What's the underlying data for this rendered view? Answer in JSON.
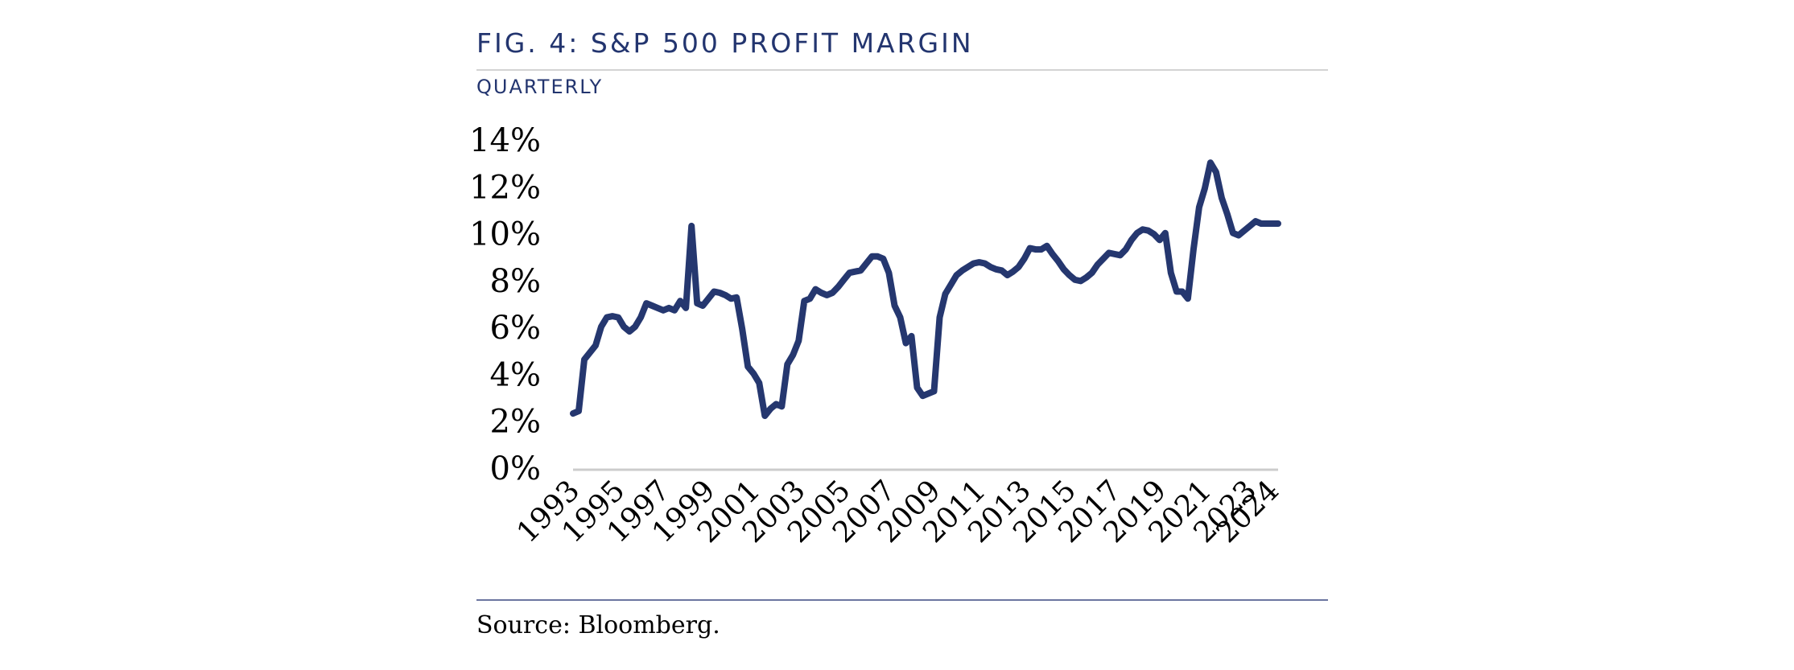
{
  "figure": {
    "title": "FIG. 4: S&P 500 PROFIT MARGIN",
    "subtitle": "QUARTERLY",
    "source": "Source: Bloomberg."
  },
  "colors": {
    "series": "#25376f",
    "heading": "#23356f",
    "baseline": "#cccccc"
  },
  "chart_data": {
    "type": "line",
    "title": "S&P 500 Profit Margin",
    "subtitle": "Quarterly",
    "xlabel": "",
    "ylabel": "",
    "ylim": [
      0,
      14
    ],
    "xlim": [
      1993,
      2024.25
    ],
    "grid": false,
    "legend": "none",
    "y_ticks": [
      0,
      2,
      4,
      6,
      8,
      10,
      12,
      14
    ],
    "y_tick_labels": [
      "0%",
      "2%",
      "4%",
      "6%",
      "8%",
      "10%",
      "12%",
      "14%"
    ],
    "x_ticks": [
      1993,
      1995,
      1997,
      1999,
      2001,
      2003,
      2005,
      2007,
      2009,
      2011,
      2013,
      2015,
      2017,
      2019,
      2021,
      2023,
      2024
    ],
    "x_tick_labels": [
      "1993",
      "1995",
      "1997",
      "1999",
      "2001",
      "2003",
      "2005",
      "2007",
      "2009",
      "2011",
      "2013",
      "2015",
      "2017",
      "2019",
      "2021",
      "2023",
      "2024"
    ],
    "series": [
      {
        "name": "S&P 500 Profit Margin",
        "x": [
          1993.0,
          1993.25,
          1993.5,
          1993.75,
          1994.0,
          1994.25,
          1994.5,
          1994.75,
          1995.0,
          1995.25,
          1995.5,
          1995.75,
          1996.0,
          1996.25,
          1996.5,
          1996.75,
          1997.0,
          1997.25,
          1997.5,
          1997.75,
          1998.0,
          1998.25,
          1998.5,
          1998.75,
          1999.0,
          1999.25,
          1999.5,
          1999.75,
          2000.0,
          2000.25,
          2000.5,
          2000.75,
          2001.0,
          2001.25,
          2001.5,
          2001.75,
          2002.0,
          2002.25,
          2002.5,
          2002.75,
          2003.0,
          2003.25,
          2003.5,
          2003.75,
          2004.0,
          2004.25,
          2004.5,
          2004.75,
          2005.0,
          2005.25,
          2005.5,
          2005.75,
          2006.0,
          2006.25,
          2006.5,
          2006.75,
          2007.0,
          2007.25,
          2007.5,
          2007.75,
          2008.0,
          2008.25,
          2008.5,
          2008.75,
          2009.0,
          2009.25,
          2009.5,
          2009.75,
          2010.0,
          2010.25,
          2010.5,
          2010.75,
          2011.0,
          2011.25,
          2011.5,
          2011.75,
          2012.0,
          2012.25,
          2012.5,
          2012.75,
          2013.0,
          2013.25,
          2013.5,
          2013.75,
          2014.0,
          2014.25,
          2014.5,
          2014.75,
          2015.0,
          2015.25,
          2015.5,
          2015.75,
          2016.0,
          2016.25,
          2016.5,
          2016.75,
          2017.0,
          2017.25,
          2017.5,
          2017.75,
          2018.0,
          2018.25,
          2018.5,
          2018.75,
          2019.0,
          2019.25,
          2019.5,
          2019.75,
          2020.0,
          2020.25,
          2020.5,
          2020.75,
          2021.0,
          2021.25,
          2021.5,
          2021.75,
          2022.0,
          2022.25,
          2022.5,
          2022.75,
          2023.0,
          2023.25,
          2023.5,
          2023.75,
          2024.0,
          2024.25
        ],
        "values": [
          2.4,
          2.5,
          4.7,
          5.0,
          5.3,
          6.1,
          6.5,
          6.55,
          6.5,
          6.1,
          5.9,
          6.1,
          6.5,
          7.1,
          7.0,
          6.9,
          6.8,
          6.9,
          6.8,
          7.2,
          6.9,
          10.4,
          7.1,
          7.0,
          7.3,
          7.6,
          7.55,
          7.45,
          7.3,
          7.35,
          6.0,
          4.4,
          4.1,
          3.7,
          2.3,
          2.6,
          2.8,
          2.7,
          4.5,
          4.9,
          5.5,
          7.2,
          7.3,
          7.7,
          7.55,
          7.45,
          7.55,
          7.8,
          8.1,
          8.4,
          8.45,
          8.5,
          8.8,
          9.1,
          9.1,
          9.0,
          8.4,
          7.0,
          6.5,
          5.4,
          5.7,
          3.5,
          3.15,
          3.25,
          3.35,
          6.5,
          7.5,
          7.9,
          8.3,
          8.5,
          8.65,
          8.8,
          8.85,
          8.8,
          8.65,
          8.55,
          8.5,
          8.3,
          8.45,
          8.65,
          9.0,
          9.45,
          9.4,
          9.4,
          9.55,
          9.2,
          8.9,
          8.55,
          8.3,
          8.1,
          8.05,
          8.2,
          8.4,
          8.75,
          9.0,
          9.25,
          9.2,
          9.15,
          9.4,
          9.8,
          10.1,
          10.25,
          10.2,
          10.05,
          9.8,
          10.1,
          8.4,
          7.6,
          7.6,
          7.3,
          9.4,
          11.2,
          12.0,
          13.1,
          12.7,
          11.6,
          10.9,
          10.1,
          10.0,
          10.2,
          10.4,
          10.6,
          10.5,
          10.5,
          10.5,
          10.5
        ]
      }
    ]
  }
}
